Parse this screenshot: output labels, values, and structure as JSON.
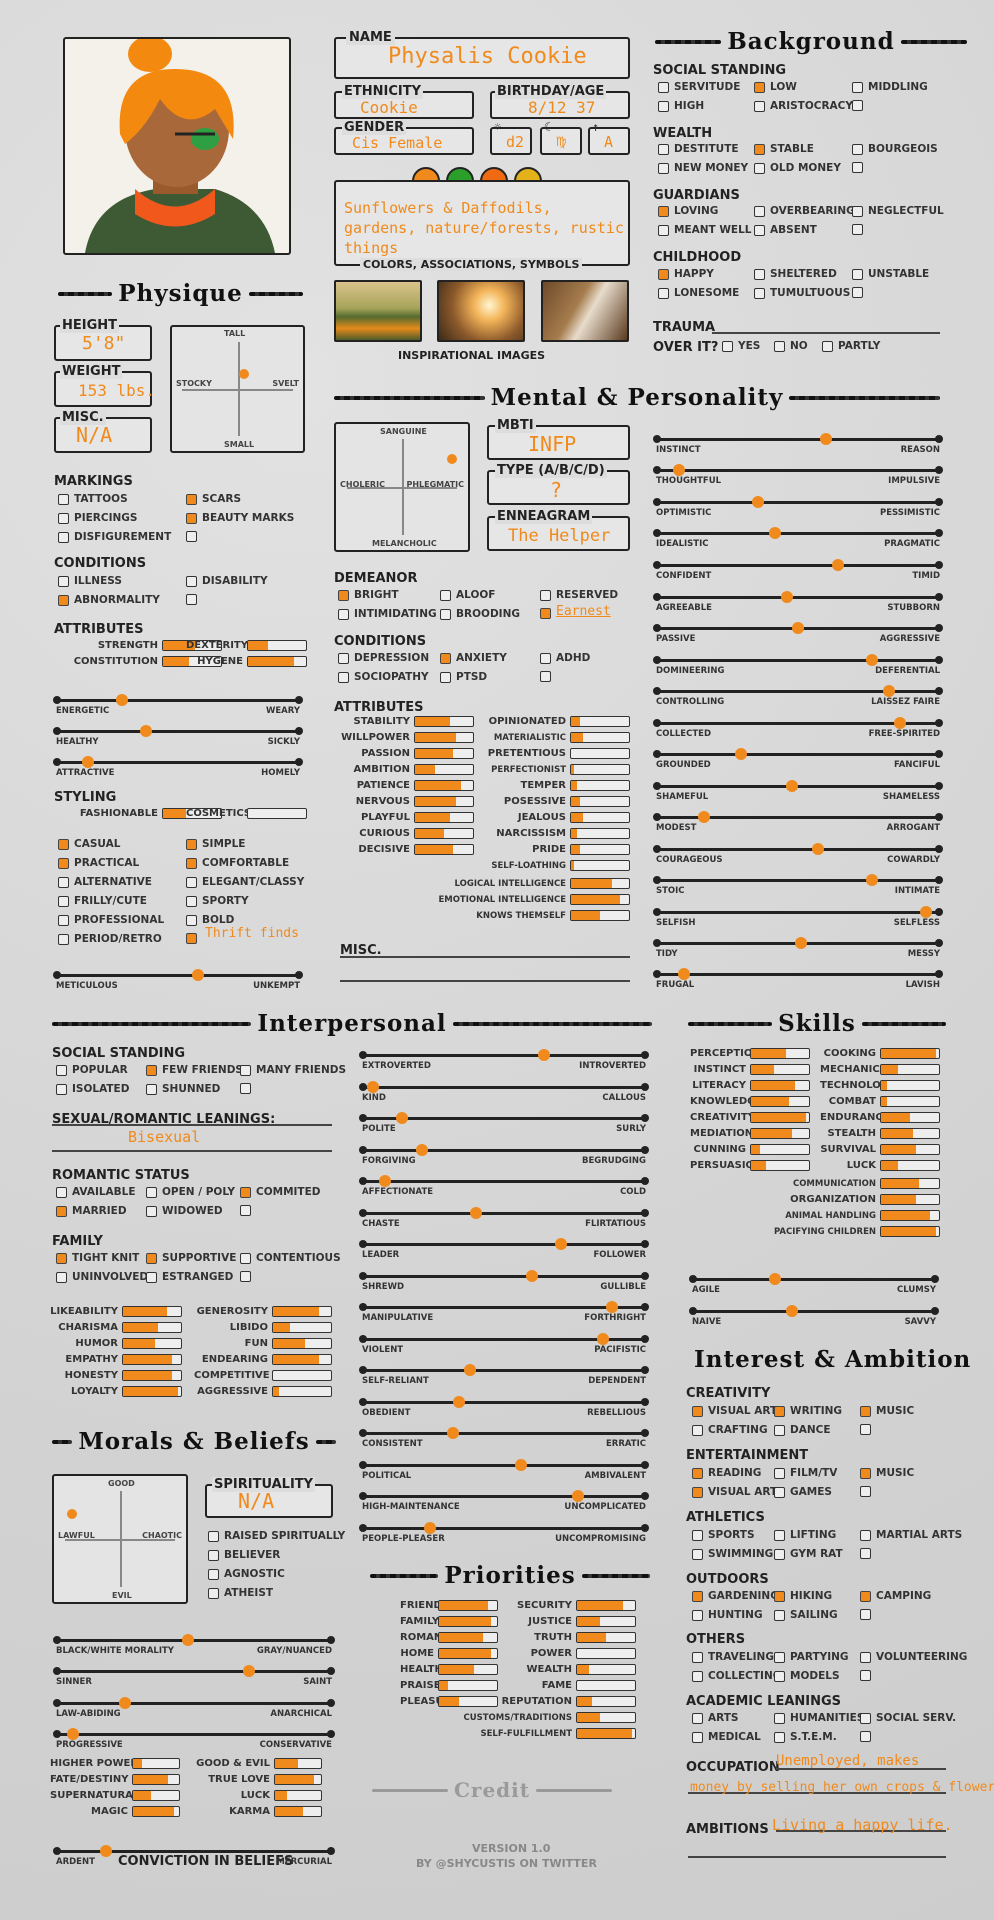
{
  "header": {
    "name_label": "NAME",
    "name": "Physalis Cookie",
    "ethnicity_label": "ETHNICITY",
    "ethnicity": "Cookie",
    "birthday_label": "BIRTHDAY/AGE",
    "birthday": "8/12  37",
    "gender_label": "GENDER",
    "gender": "Cis Female",
    "sun": "d2",
    "moon": "♍",
    "rising": "A",
    "colors_text": "Sunflowers & Daffodils, gardens, nature/forests, rustic things",
    "colors_label": "COLORS, ASSOCIATIONS, SYMBOLS",
    "swatches": [
      "#f08a1c",
      "#2aa02a",
      "#f06a14",
      "#e3b21a"
    ],
    "images_label": "INSPIRATIONAL IMAGES"
  },
  "sections": {
    "background": "Background",
    "physique": "Physique",
    "mental": "Mental & Personality",
    "interpersonal": "Interpersonal",
    "skills": "Skills",
    "interest": "Interest & Ambition",
    "morals": "Morals & Beliefs",
    "priorities": "Priorities"
  },
  "physique": {
    "height_label": "HEIGHT",
    "height": "5'8\"",
    "weight_label": "WEIGHT",
    "weight": "153 lbs.",
    "misc_label": "MISC.",
    "misc": "N/A",
    "grid": {
      "top": "TALL",
      "bottom": "SMALL",
      "left": "STOCKY",
      "right": "SVELT"
    },
    "markings_label": "MARKINGS",
    "conditions_label": "CONDITIONS",
    "attributes_label": "ATTRIBUTES",
    "styling_label": "STYLING"
  },
  "background": {
    "social_label": "SOCIAL STANDING",
    "wealth_label": "WEALTH",
    "guardians_label": "GUARDIANS",
    "childhood_label": "CHILDHOOD",
    "trauma_label": "TRAUMA",
    "over_label": "OVER IT?",
    "over_yes": "YES",
    "over_no": "NO",
    "over_partly": "PARTLY"
  },
  "mental": {
    "grid": {
      "top": "SANGUINE",
      "bottom": "MELANCHOLIC",
      "left": "CHOLERIC",
      "right": "PHLEGMATIC"
    },
    "mbti_label": "MBTI",
    "mbti": "INFP",
    "type_label": "TYPE (A/B/C/D)",
    "type": "?",
    "ennea_label": "ENNEAGRAM",
    "ennea": "The Helper",
    "demeanor_label": "DEMEANOR",
    "demeanor_other": "Earnest",
    "conditions_label": "CONDITIONS",
    "attributes_label": "ATTRIBUTES",
    "misc_label": "MISC."
  },
  "inter": {
    "social_label": "SOCIAL STANDING",
    "leaning_label": "SEXUAL/ROMANTIC LEANINGS:",
    "leaning": "Bisexual",
    "romantic_label": "ROMANTIC STATUS",
    "family_label": "FAMILY"
  },
  "morals": {
    "grid": {
      "top": "GOOD",
      "bottom": "EVIL",
      "left": "LAWFUL",
      "right": "CHAOTIC"
    },
    "spirit_label": "SPIRITUALITY",
    "spirit": "N/A",
    "conviction": "CONVICTION IN BELIEFS"
  },
  "interest": {
    "creativity": "CREATIVITY",
    "entertainment": "ENTERTAINMENT",
    "athletics": "ATHLETICS",
    "outdoors": "OUTDOORS",
    "others": "OTHERS",
    "academic": "ACADEMIC LEANINGS",
    "occupation_label": "OCCUPATION",
    "occupation1": "Unemployed, makes",
    "occupation2": "money by selling her own crops & flowers.",
    "ambitions_label": "AMBITIONS",
    "ambitions": "Living a happy life."
  },
  "credit": {
    "title": "Credit",
    "version": "VERSION 1.0",
    "by": "BY @SHYCUSTIS ON TWITTER"
  }
}
